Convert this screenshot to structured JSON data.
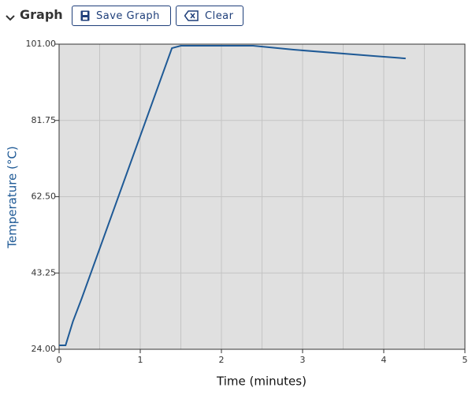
{
  "header": {
    "title": "Graph",
    "buttons": [
      "Save Graph",
      "Clear"
    ]
  },
  "chart_data": {
    "type": "line",
    "x_label": "Time (minutes)",
    "y_label": "Temperature (°C)",
    "x": [
      0,
      0.08,
      0.17,
      0.28,
      1.39,
      1.5,
      2.39,
      2.89,
      3.89,
      4.27
    ],
    "series": [
      {
        "color": "#1f5a96",
        "values": [
          25.0,
          25.0,
          31.0,
          36.9,
          100.0,
          100.6,
          100.6,
          99.6,
          98.0,
          97.4
        ]
      }
    ],
    "xlim": [
      0,
      5
    ],
    "xticks": [
      0,
      1,
      2,
      3,
      4,
      5
    ],
    "xminorticks": [
      0.5,
      1.5,
      2.5,
      3.5,
      4.5
    ],
    "ylim": [
      24,
      101
    ],
    "yticks": [
      {
        "value": 24,
        "label": "24.00"
      },
      {
        "value": 43.25,
        "label": "43.25"
      },
      {
        "value": 62.5,
        "label": "62.50"
      },
      {
        "value": 81.75,
        "label": "81.75"
      },
      {
        "value": 101,
        "label": "101.00"
      }
    ],
    "grid": true
  }
}
